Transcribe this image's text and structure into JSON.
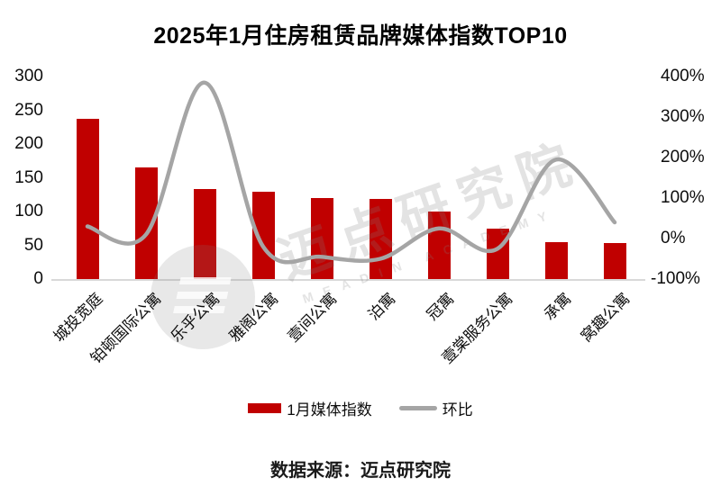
{
  "title": "2025年1月住房租赁品牌媒体指数TOP10",
  "source": "数据来源：迈点研究院",
  "legend": {
    "bar_label": "1月媒体指数",
    "line_label": "环比"
  },
  "watermark": {
    "main": "迈点研究院",
    "sub": "MEADIN ACADEMY"
  },
  "colors": {
    "bar": "#c00000",
    "line": "#a5a5a5",
    "axis_line": "#d9d9d9",
    "text": "#0d0d0d",
    "watermark": "rgba(128,128,128,0.22)"
  },
  "chart_data": {
    "type": "bar",
    "title": "2025年1月住房租赁品牌媒体指数TOP10",
    "categories": [
      "城投宽庭",
      "铂顿国际公寓",
      "乐乎公寓",
      "雅阁公寓",
      "壹间公寓",
      "泊寓",
      "冠寓",
      "壹棠服务公寓",
      "承寓",
      "窝趣公寓"
    ],
    "series": [
      {
        "name": "1月媒体指数",
        "type": "bar",
        "axis": "left",
        "values": [
          237,
          165,
          133,
          129,
          120,
          119,
          100,
          75,
          55,
          53
        ]
      },
      {
        "name": "环比",
        "type": "line",
        "axis": "right",
        "unit": "%",
        "values": [
          30,
          10,
          385,
          -20,
          -45,
          -50,
          25,
          -25,
          195,
          40
        ]
      }
    ],
    "left_axis": {
      "ticks": [
        300,
        250,
        200,
        150,
        100,
        50,
        0
      ],
      "range": [
        0,
        300
      ],
      "grid": false
    },
    "right_axis": {
      "ticks": [
        "400%",
        "300%",
        "200%",
        "100%",
        "0%",
        "-100%"
      ],
      "range": [
        -100,
        400
      ],
      "grid": false
    },
    "legend_position": "bottom",
    "smooth_line": true
  }
}
